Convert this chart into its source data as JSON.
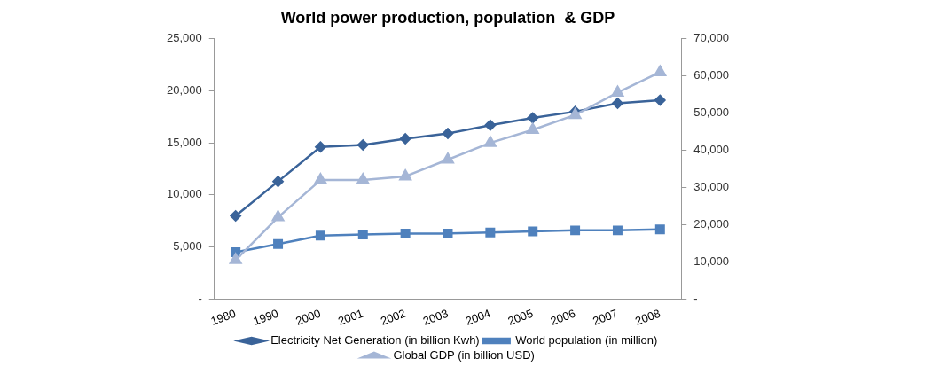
{
  "chart_data": {
    "type": "line",
    "title": "World power production, population  & GDP",
    "categories": [
      "1980",
      "1990",
      "2000",
      "2001",
      "2002",
      "2003",
      "2004",
      "2005",
      "2006",
      "2007",
      "2008"
    ],
    "series": [
      {
        "name": "Electricity Net Generation (in billion Kwh)",
        "color": "#3a6399",
        "marker": "diamond",
        "values": [
          8000,
          11300,
          14600,
          14800,
          15400,
          15900,
          16700,
          17400,
          18000,
          18800,
          19100
        ]
      },
      {
        "name": "World population (in million)",
        "color": "#4f81bd",
        "marker": "square",
        "values": [
          4500,
          5300,
          6100,
          6200,
          6300,
          6300,
          6400,
          6500,
          6600,
          6600,
          6700
        ]
      },
      {
        "name": "Global GDP (in billion USD)",
        "color": "#a5b6d6",
        "marker": "triangle",
        "axis": "y2",
        "values": [
          10500,
          22000,
          32000,
          32000,
          33000,
          37500,
          42000,
          45500,
          49500,
          55500,
          61000
        ]
      }
    ],
    "ylim": [
      0,
      25000
    ],
    "yticks": [
      {
        "value": 0,
        "label": "-"
      },
      {
        "value": 5000,
        "label": "5,000"
      },
      {
        "value": 10000,
        "label": "10,000"
      },
      {
        "value": 15000,
        "label": "15,000"
      },
      {
        "value": 20000,
        "label": "20,000"
      },
      {
        "value": 25000,
        "label": "25,000"
      }
    ],
    "y2lim": [
      0,
      70000
    ],
    "y2ticks": [
      {
        "value": 0,
        "label": "-"
      },
      {
        "value": 10000,
        "label": "10,000"
      },
      {
        "value": 20000,
        "label": "20,000"
      },
      {
        "value": 30000,
        "label": "30,000"
      },
      {
        "value": 40000,
        "label": "40,000"
      },
      {
        "value": 50000,
        "label": "50,000"
      },
      {
        "value": 60000,
        "label": "60,000"
      },
      {
        "value": 70000,
        "label": "70,000"
      }
    ],
    "grid": false,
    "legend": "bottom",
    "line_style": "solid"
  }
}
